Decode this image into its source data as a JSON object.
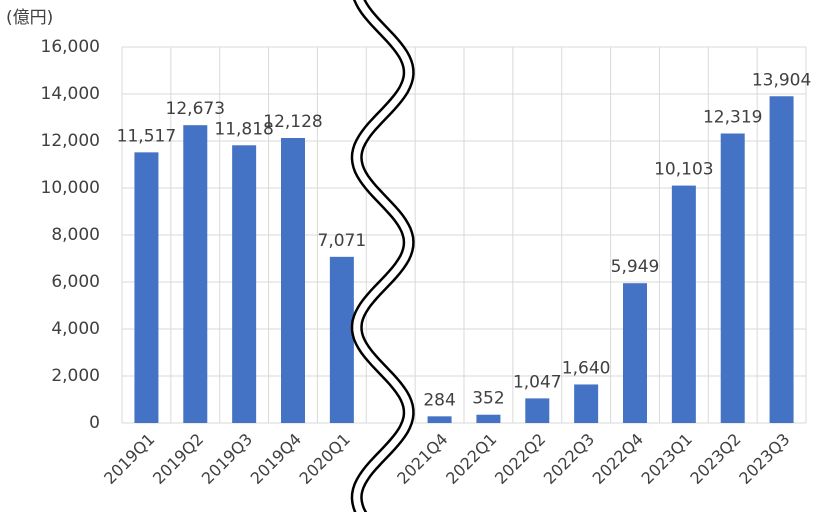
{
  "chart_data": {
    "type": "bar",
    "y_label": "(億円)",
    "categories": [
      "2019Q1",
      "2019Q2",
      "2019Q3",
      "2019Q4",
      "2020Q1",
      null,
      "2021Q4",
      "2022Q1",
      "2022Q2",
      "2022Q3",
      "2022Q4",
      "2023Q1",
      "2023Q2",
      "2023Q3"
    ],
    "values": [
      11517,
      12673,
      11818,
      12128,
      7071,
      null,
      284,
      352,
      1047,
      1640,
      5949,
      10103,
      12319,
      13904
    ],
    "value_labels": [
      "11,517",
      "12,673",
      "11,818",
      "12,128",
      "7,071",
      null,
      "284",
      "352",
      "1,047",
      "1,640",
      "5,949",
      "10,103",
      "12,319",
      "13,904"
    ],
    "color": "#4472c4",
    "ylim": [
      0,
      16000
    ],
    "yticks": [
      0,
      {
        "value": 2000,
        "label": "2,000"
      },
      {
        "value": 4000,
        "label": "4,000"
      },
      {
        "value": 6000,
        "label": "6,000"
      },
      {
        "value": 8000,
        "label": "8,000"
      },
      {
        "value": 10000,
        "label": "10,000"
      },
      {
        "value": 12000,
        "label": "12,000"
      },
      {
        "value": 14000,
        "label": "14,000"
      },
      {
        "value": 16000,
        "label": "16,000"
      }
    ],
    "grid": true
  }
}
